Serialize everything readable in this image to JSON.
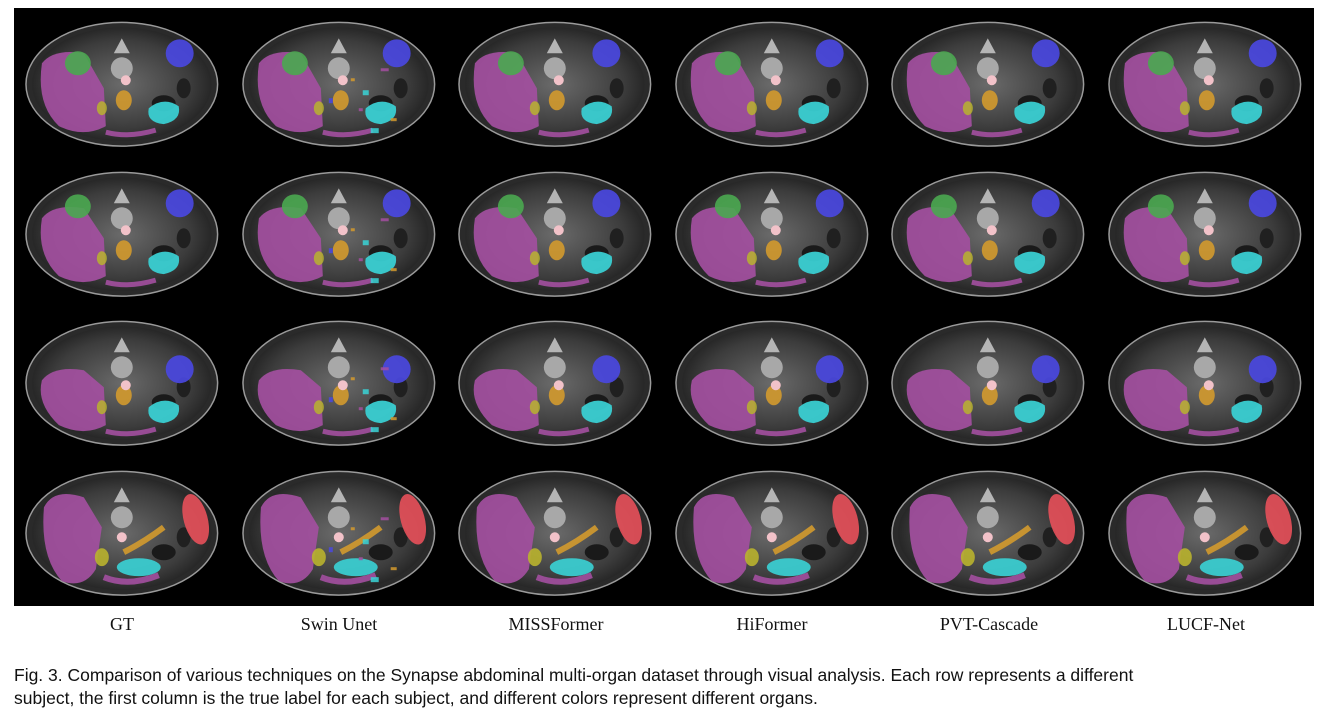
{
  "figure": {
    "columns": [
      "GT",
      "Swin Unet",
      "MISSFormer",
      "HiFormer",
      "PVT-Cascade",
      "LUCF-Net"
    ],
    "rows": 4,
    "organ_colors": {
      "liver": "#a34fa0",
      "kidney_left": "#4a48e0",
      "spleen_or_stomach": "#4aa850",
      "pancreas": "#d39a2e",
      "stomach": "#3ad3d6",
      "aorta": "#f2c2c9",
      "gallbladder": "#b9b32e",
      "spleen": "#e8505a"
    }
  },
  "caption": {
    "line1": "Fig. 3. Comparison of various techniques on the Synapse abdominal multi-organ dataset through visual analysis. Each row represents a different",
    "line2": "subject, the first column is the true label for each subject, and different colors represent different organs."
  }
}
